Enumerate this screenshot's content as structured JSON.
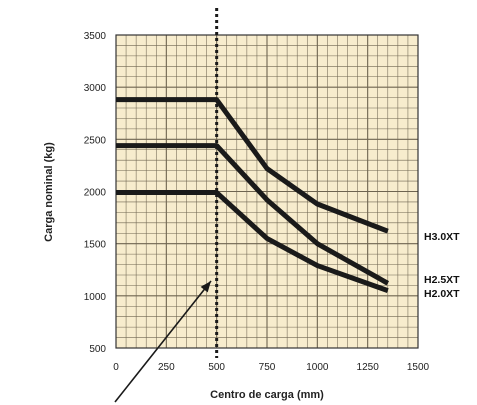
{
  "chart_data": {
    "type": "line",
    "title": "",
    "xlabel": "Centro de carga (mm)",
    "ylabel": "Carga nominal (kg)",
    "xlim": [
      0,
      1500
    ],
    "ylim": [
      500,
      3500
    ],
    "x_ticks": [
      "0",
      "250",
      "500",
      "750",
      "1000",
      "1250",
      "1500"
    ],
    "y_ticks": [
      "500",
      "1000",
      "1500",
      "2000",
      "2500",
      "3000",
      "3500"
    ],
    "grid": true,
    "background": "#f7eccd",
    "grid_color": "#6e6450",
    "line_color": "#1a1a1a",
    "reference_line": {
      "x": 500,
      "style": "dotted"
    },
    "series": [
      {
        "name": "H3.0XT",
        "points": [
          [
            0,
            2880
          ],
          [
            500,
            2880
          ],
          [
            750,
            2220
          ],
          [
            1000,
            1880
          ],
          [
            1350,
            1620
          ]
        ]
      },
      {
        "name": "H2.5XT",
        "points": [
          [
            0,
            2440
          ],
          [
            500,
            2440
          ],
          [
            750,
            1920
          ],
          [
            1000,
            1500
          ],
          [
            1350,
            1120
          ]
        ]
      },
      {
        "name": "H2.0XT",
        "points": [
          [
            0,
            1990
          ],
          [
            500,
            1990
          ],
          [
            750,
            1550
          ],
          [
            1000,
            1290
          ],
          [
            1350,
            1050
          ]
        ]
      }
    ]
  }
}
